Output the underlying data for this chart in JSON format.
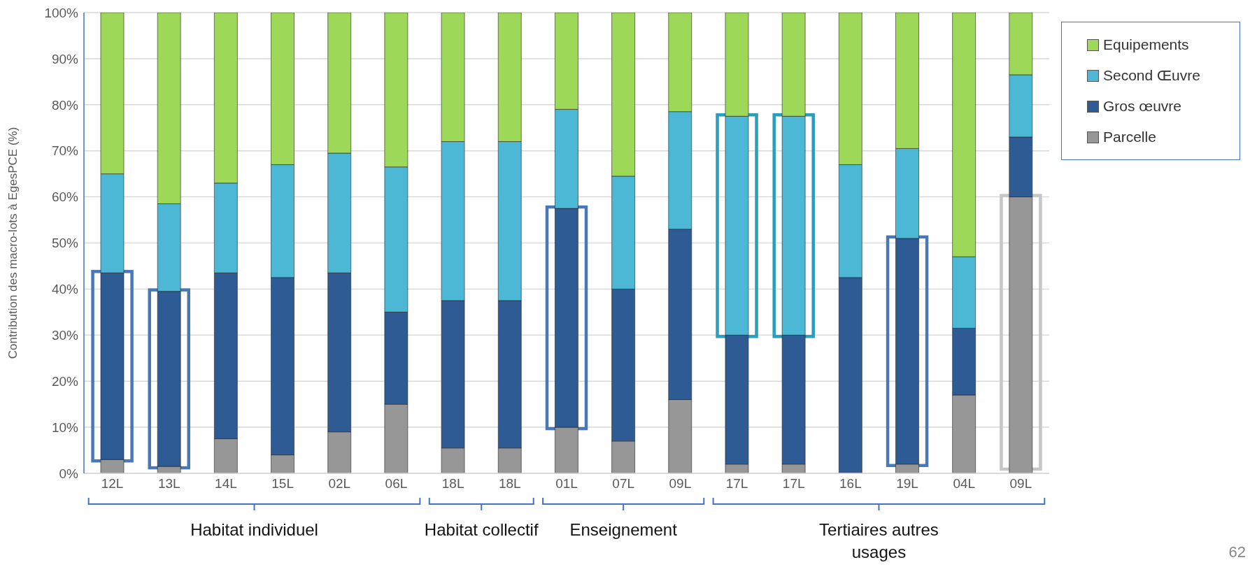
{
  "chart_data": {
    "type": "bar",
    "stacked": true,
    "ylabel": "Contribution des macro-lots à EgesPCE (%)",
    "categories": [
      "12L",
      "13L",
      "14L",
      "15L",
      "02L",
      "06L",
      "18L",
      "18L",
      "01L",
      "07L",
      "09L",
      "17L",
      "17L",
      "16L",
      "19L",
      "04L",
      "09L"
    ],
    "series": [
      {
        "name": "Parcelle",
        "color": "#979797",
        "values": [
          3,
          1.5,
          7.5,
          4,
          9,
          15,
          5.5,
          5.5,
          10,
          7,
          16,
          2,
          2,
          0,
          2,
          17,
          60
        ]
      },
      {
        "name": "Gros œuvre",
        "color": "#2f5b94",
        "values": [
          40.5,
          38,
          36,
          38.5,
          34.5,
          20,
          32,
          32,
          47.5,
          33,
          37,
          28,
          28,
          42.5,
          49,
          14.5,
          13
        ]
      },
      {
        "name": "Second Œuvre",
        "color": "#4cb8d6",
        "values": [
          21.5,
          19,
          19.5,
          24.5,
          26,
          31.5,
          34.5,
          34.5,
          21.5,
          24.5,
          25.5,
          47.5,
          47.5,
          24.5,
          19.5,
          15.5,
          13.5
        ]
      },
      {
        "name": "Equipements",
        "color": "#9dd858",
        "values": [
          35,
          41.5,
          37,
          33,
          30.5,
          33.5,
          28,
          28,
          21,
          35.5,
          21.5,
          22.5,
          22.5,
          33,
          29.5,
          53,
          13.5
        ]
      }
    ],
    "ylim": [
      0,
      100
    ],
    "yticks": [
      {
        "value": 0,
        "label": "0%"
      },
      {
        "value": 10,
        "label": "10%"
      },
      {
        "value": 20,
        "label": "20%"
      },
      {
        "value": 30,
        "label": "30%"
      },
      {
        "value": 40,
        "label": "40%"
      },
      {
        "value": 50,
        "label": "50%"
      },
      {
        "value": 60,
        "label": "60%"
      },
      {
        "value": 70,
        "label": "70%"
      },
      {
        "value": 80,
        "label": "80%"
      },
      {
        "value": 90,
        "label": "90%"
      },
      {
        "value": 100,
        "label": "100%"
      }
    ],
    "grid": "y",
    "legend": "top right",
    "annotations": [
      "Habitat individuel",
      "Habitat collectif",
      "Enseignement",
      "Tertiaires autres usages",
      "62"
    ]
  }
}
